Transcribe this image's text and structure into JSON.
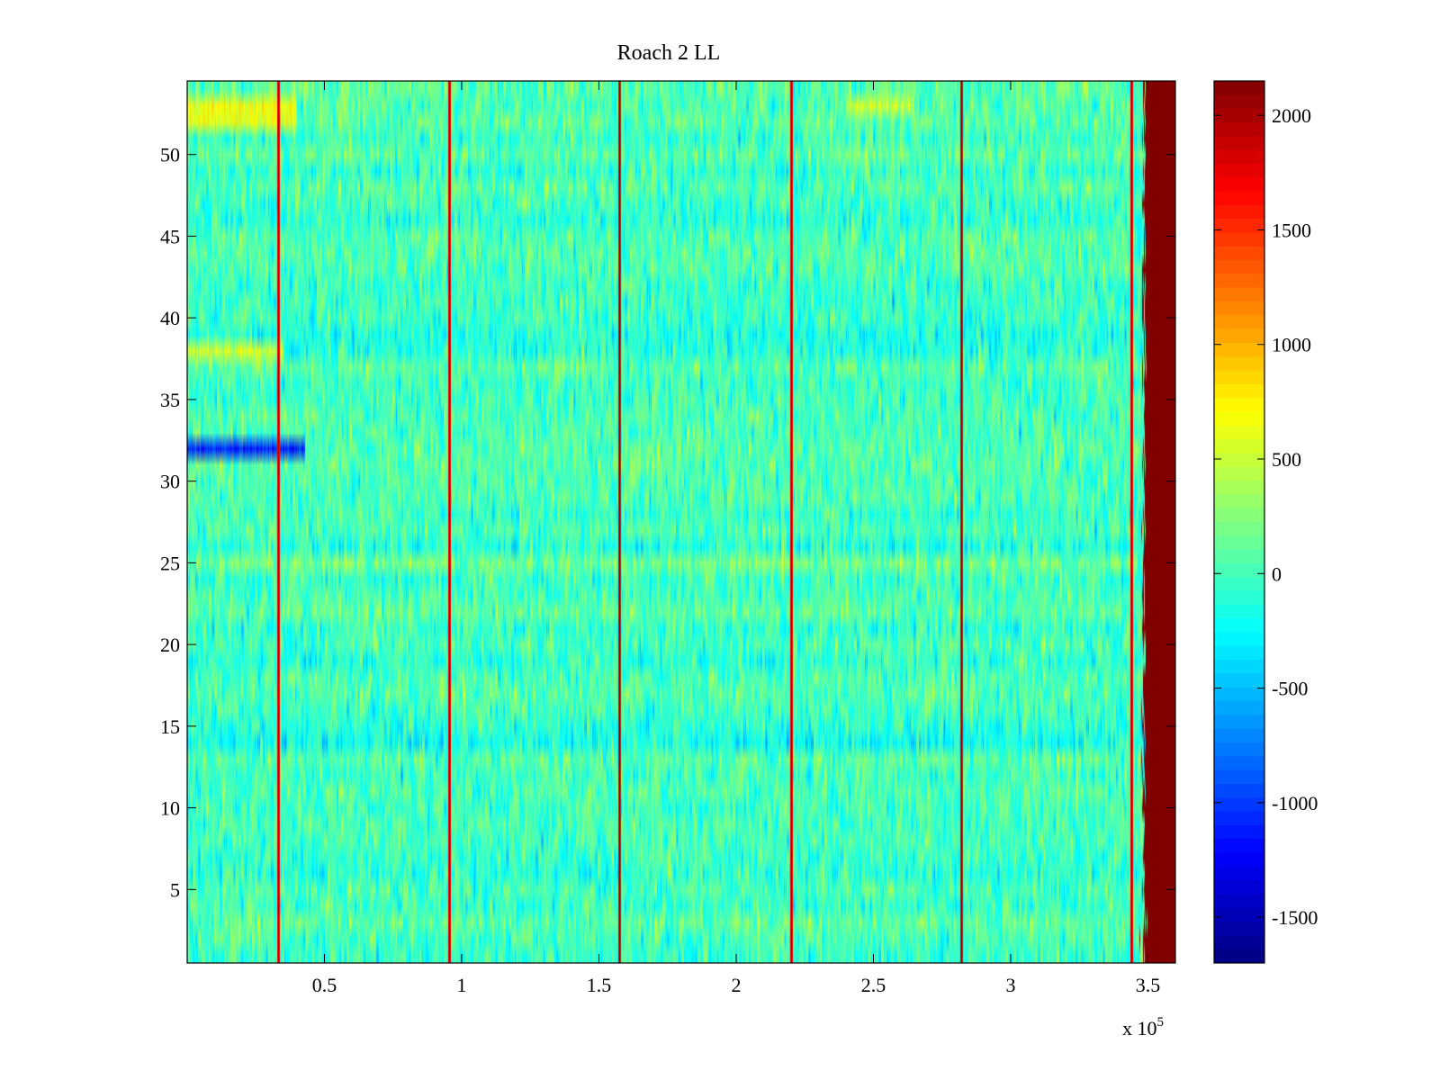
{
  "chart_data": {
    "type": "heatmap",
    "title": "Roach 2 LL",
    "xlabel": "",
    "ylabel": "",
    "x_multiplier_label": "x 10",
    "x_multiplier_exponent": "5",
    "xlim": [
      0,
      3.6
    ],
    "ylim": [
      0.5,
      54.5
    ],
    "rows": 54,
    "x_ticks": [
      {
        "value": 0.5,
        "label": "0.5"
      },
      {
        "value": 1,
        "label": "1"
      },
      {
        "value": 1.5,
        "label": "1.5"
      },
      {
        "value": 2,
        "label": "2"
      },
      {
        "value": 2.5,
        "label": "2.5"
      },
      {
        "value": 3,
        "label": "3"
      },
      {
        "value": 3.5,
        "label": "3.5"
      }
    ],
    "y_ticks": [
      {
        "value": 5,
        "label": "5"
      },
      {
        "value": 10,
        "label": "10"
      },
      {
        "value": 15,
        "label": "15"
      },
      {
        "value": 20,
        "label": "20"
      },
      {
        "value": 25,
        "label": "25"
      },
      {
        "value": 30,
        "label": "30"
      },
      {
        "value": 35,
        "label": "35"
      },
      {
        "value": 40,
        "label": "40"
      },
      {
        "value": 45,
        "label": "45"
      },
      {
        "value": 50,
        "label": "50"
      }
    ],
    "colorbar": {
      "colormap": "jet",
      "clim": [
        -1700,
        2150
      ],
      "ticks": [
        {
          "value": 2000,
          "label": "2000"
        },
        {
          "value": 1500,
          "label": "1500"
        },
        {
          "value": 1000,
          "label": "1000"
        },
        {
          "value": 500,
          "label": "500"
        },
        {
          "value": 0,
          "label": "0"
        },
        {
          "value": -500,
          "label": "-500"
        },
        {
          "value": -1000,
          "label": "-1000"
        },
        {
          "value": -1500,
          "label": "-1500"
        }
      ]
    },
    "background_level": 0,
    "noise_amplitude": 250,
    "vertical_spikes_x": [
      0.33,
      0.955,
      1.575,
      2.2,
      2.82,
      3.44
    ],
    "saturated_region_start_x": 3.485,
    "saturated_region_value": 2150,
    "low_row_segments": [
      {
        "row": 32,
        "x_start": 0,
        "x_end": 0.43,
        "value": -1100
      }
    ],
    "warm_row_segments": [
      {
        "row": 53,
        "x_start": 0,
        "x_end": 0.4,
        "value": 650
      },
      {
        "row": 52,
        "x_start": 0,
        "x_end": 0.4,
        "value": 600
      },
      {
        "row": 38,
        "x_start": 0,
        "x_end": 0.35,
        "value": 550
      },
      {
        "row": 53,
        "x_start": 2.4,
        "x_end": 2.65,
        "value": 450
      }
    ]
  }
}
